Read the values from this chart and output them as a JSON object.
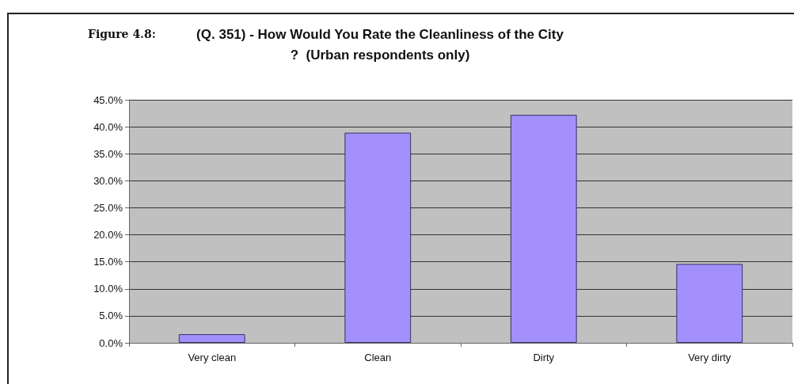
{
  "chart_data": {
    "type": "bar",
    "title": "(Q. 351) - How Would You Rate the Cleanliness of the City?  (Urban respondents only)",
    "subtitle": "Figure 4.8:",
    "categories": [
      "Very clean",
      "Clean",
      "Dirty",
      "Very dirty"
    ],
    "values": [
      1.6,
      38.9,
      42.2,
      14.6
    ],
    "color": "#a390fc",
    "ylim": [
      0,
      45
    ],
    "yticks": [
      {
        "value": 0,
        "label": "0.0%"
      },
      {
        "value": 5,
        "label": "5.0%"
      },
      {
        "value": 10,
        "label": "10.0%"
      },
      {
        "value": 15,
        "label": "15.0%"
      },
      {
        "value": 20,
        "label": "20.0%"
      },
      {
        "value": 25,
        "label": "25.0%"
      },
      {
        "value": 30,
        "label": "30.0%"
      },
      {
        "value": 35,
        "label": "35.0%"
      },
      {
        "value": 40,
        "label": "40.0%"
      },
      {
        "value": 45,
        "label": "45.0%"
      }
    ],
    "grid": "y"
  }
}
